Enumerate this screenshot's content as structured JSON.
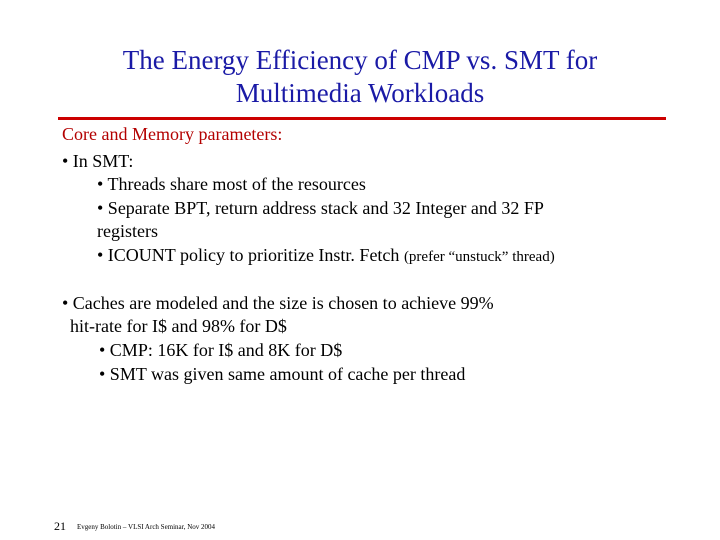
{
  "slide": {
    "title_line1": "The Energy Efficiency of CMP vs. SMT for",
    "title_line2": "Multimedia Workloads",
    "accent_color": "#cc0000",
    "title_color": "#1a1aa6",
    "heading": "Core and Memory parameters:",
    "smt_heading": "• In SMT:",
    "smt_items": [
      "•  Threads share most of the resources",
      "•  Separate BPT, return address stack and 32 Integer and 32 FP",
      "registers",
      "•  ICOUNT policy to prioritize Instr. Fetch",
      "(prefer “unstuck” thread)"
    ],
    "cache_line1": "• Caches are modeled and the size is chosen to achieve 99%",
    "cache_line2": "hit-rate for I$ and 98% for D$",
    "cache_items": [
      "• CMP: 16K for I$ and 8K for D$",
      "• SMT was given same amount of cache per thread"
    ],
    "page_number": "21",
    "footer": "Evgeny Bolotin – VLSI Arch Seminar, Nov 2004"
  }
}
